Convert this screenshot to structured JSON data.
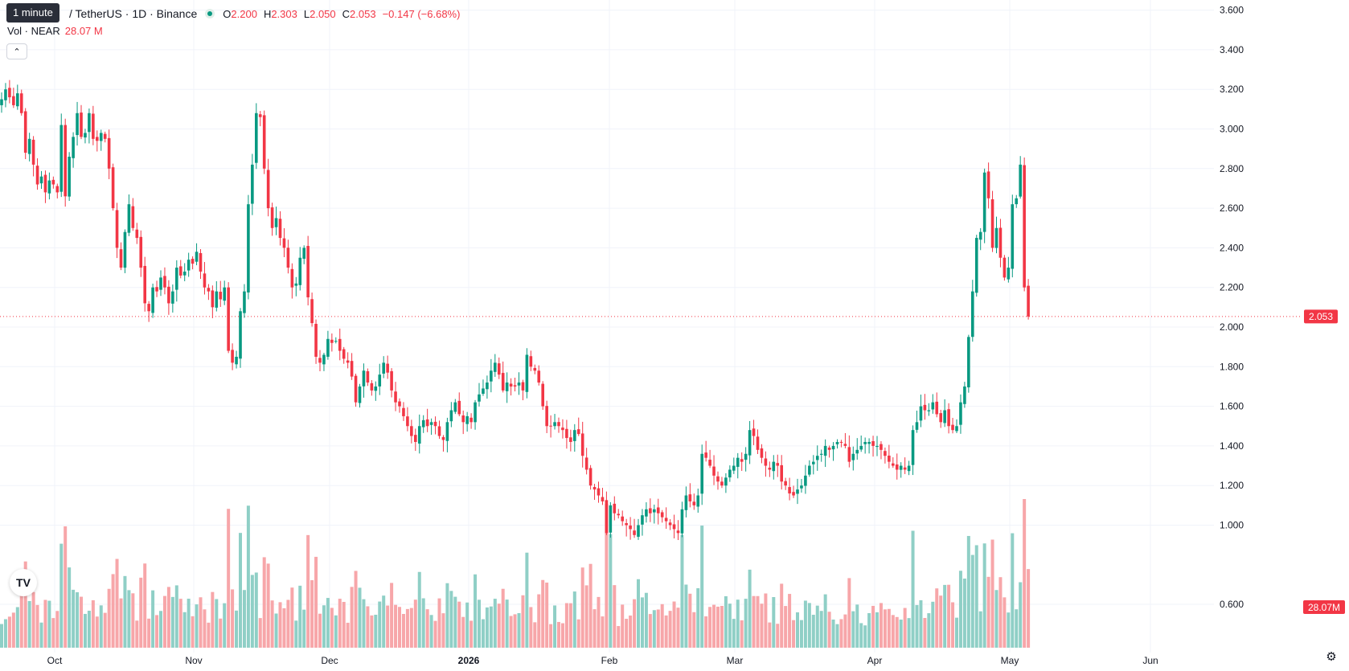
{
  "tooltip": "1 minute",
  "header": {
    "symbol_title": "/ TetherUS · 1D · Binance",
    "ohlc": {
      "o_label": "O",
      "o": "2.200",
      "h_label": "H",
      "h": "2.303",
      "l_label": "L",
      "l": "2.050",
      "c_label": "C",
      "c": "2.053",
      "change": "−0.147 (−6.68%)"
    }
  },
  "volume_legend": {
    "label": "Vol · NEAR",
    "value": "28.07 M"
  },
  "colors": {
    "up": "#089981",
    "down": "#f23645",
    "up_volume": "#8fcfc6",
    "down_volume": "#f7a6a9"
  },
  "icons": {
    "collapse": "chevron-up-icon",
    "logo": "tradingview-logo-icon",
    "settings": "gear-icon"
  },
  "logo_text": "TV",
  "chart_data": {
    "type": "candlestick",
    "x_tick_labels": [
      "Oct",
      "Nov",
      "Dec",
      "2026",
      "Feb",
      "Mar",
      "Apr",
      "May",
      "Jun"
    ],
    "y_tick_labels": [
      "0.600",
      "1.000",
      "1.200",
      "1.400",
      "1.600",
      "1.800",
      "2.000",
      "2.200",
      "2.400",
      "2.600",
      "2.800",
      "3.000",
      "3.200",
      "3.400",
      "3.600"
    ],
    "ylim": [
      0.6,
      3.6
    ],
    "grid": true,
    "last_price_label": "2.053",
    "last_volume_label": "28.07M",
    "close": [
      3.15,
      3.2,
      3.16,
      3.12,
      3.18,
      3.08,
      2.88,
      2.95,
      2.82,
      2.72,
      2.76,
      2.68,
      2.74,
      2.72,
      2.68,
      3.02,
      2.66,
      2.86,
      2.96,
      3.08,
      2.96,
      2.98,
      3.08,
      2.95,
      2.94,
      2.98,
      2.95,
      2.8,
      2.6,
      2.4,
      2.3,
      2.48,
      2.62,
      2.5,
      2.45,
      2.3,
      2.12,
      2.08,
      2.2,
      2.18,
      2.25,
      2.2,
      2.12,
      2.18,
      2.3,
      2.26,
      2.28,
      2.34,
      2.32,
      2.38,
      2.28,
      2.2,
      2.18,
      2.1,
      2.18,
      2.14,
      2.2,
      1.88,
      1.82,
      1.85,
      2.08,
      2.18,
      2.62,
      2.82,
      3.08,
      3.06,
      2.8,
      2.6,
      2.5,
      2.55,
      2.45,
      2.4,
      2.3,
      2.2,
      2.22,
      2.35,
      2.4,
      2.15,
      2.02,
      1.85,
      1.82,
      1.86,
      1.94,
      1.92,
      1.93,
      1.88,
      1.84,
      1.82,
      1.75,
      1.62,
      1.7,
      1.78,
      1.72,
      1.68,
      1.7,
      1.76,
      1.82,
      1.77,
      1.68,
      1.62,
      1.6,
      1.55,
      1.5,
      1.45,
      1.42,
      1.5,
      1.53,
      1.5,
      1.52,
      1.5,
      1.45,
      1.43,
      1.52,
      1.58,
      1.62,
      1.56,
      1.52,
      1.55,
      1.52,
      1.62,
      1.66,
      1.69,
      1.72,
      1.78,
      1.82,
      1.76,
      1.68,
      1.72,
      1.7,
      1.7,
      1.72,
      1.68,
      1.86,
      1.8,
      1.78,
      1.72,
      1.6,
      1.5,
      1.5,
      1.52,
      1.5,
      1.48,
      1.44,
      1.42,
      1.48,
      1.46,
      1.35,
      1.28,
      1.2,
      1.18,
      1.15,
      1.12,
      0.96,
      1.1,
      1.06,
      1.05,
      1.02,
      1.0,
      0.98,
      0.95,
      1.0,
      1.05,
      1.08,
      1.06,
      1.08,
      1.06,
      1.04,
      1.02,
      1.0,
      0.98,
      0.96,
      1.08,
      1.15,
      1.12,
      1.1,
      1.15,
      1.36,
      1.34,
      1.3,
      1.25,
      1.22,
      1.2,
      1.24,
      1.28,
      1.3,
      1.34,
      1.32,
      1.36,
      1.48,
      1.45,
      1.38,
      1.34,
      1.3,
      1.28,
      1.32,
      1.3,
      1.22,
      1.2,
      1.16,
      1.15,
      1.18,
      1.2,
      1.25,
      1.3,
      1.32,
      1.35,
      1.36,
      1.4,
      1.38,
      1.4,
      1.42,
      1.42,
      1.4,
      1.32,
      1.36,
      1.38,
      1.4,
      1.42,
      1.42,
      1.4,
      1.4,
      1.38,
      1.35,
      1.32,
      1.3,
      1.28,
      1.3,
      1.28,
      1.3,
      1.48,
      1.52,
      1.6,
      1.58,
      1.58,
      1.62,
      1.56,
      1.52,
      1.58,
      1.5,
      1.48,
      1.5,
      1.62,
      1.7,
      1.95,
      2.18,
      2.45,
      2.48,
      2.78,
      2.65,
      2.4,
      2.5,
      2.35,
      2.25,
      2.3,
      2.62,
      2.65,
      2.82,
      2.2,
      2.053
    ]
  }
}
